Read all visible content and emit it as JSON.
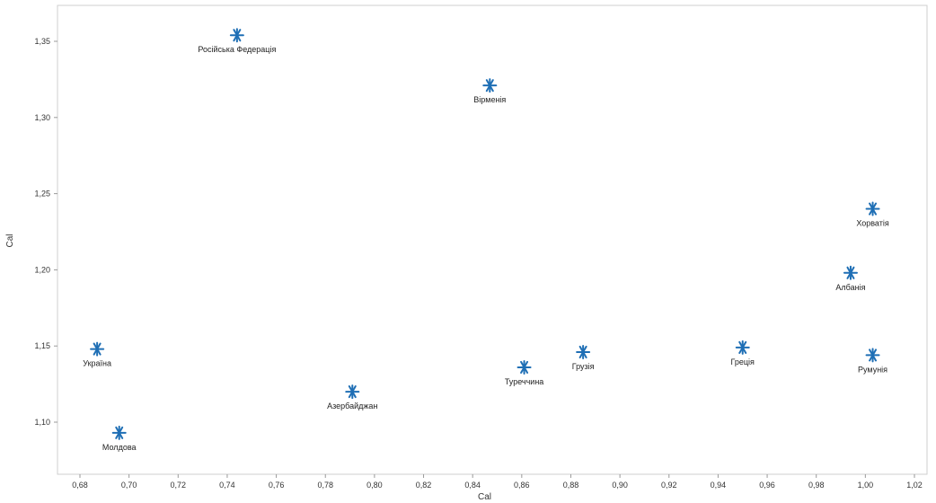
{
  "chart_data": {
    "type": "scatter",
    "title": "",
    "xlabel": "Cal",
    "ylabel": "Cal",
    "xlim": [
      0.67,
      1.02
    ],
    "ylim": [
      1.07,
      1.375
    ],
    "xticks": [
      "0,68",
      "0,70",
      "0,72",
      "0,74",
      "0,76",
      "0,78",
      "0,80",
      "0,82",
      "0,84",
      "0,86",
      "0,88",
      "0,90",
      "0,92",
      "0,94",
      "0,96",
      "0,98",
      "1,00",
      "1,02"
    ],
    "yticks": [
      "1,10",
      "1,15",
      "1,20",
      "1,25",
      "1,30",
      "1,35"
    ],
    "grid": false,
    "marker_color": "#1f6fb5",
    "points": [
      {
        "label": "Російська Федерація",
        "x": 0.744,
        "y": 1.354
      },
      {
        "label": "Вірменія",
        "x": 0.847,
        "y": 1.321
      },
      {
        "label": "Хорватія",
        "x": 1.003,
        "y": 1.24
      },
      {
        "label": "Албанія",
        "x": 0.994,
        "y": 1.198
      },
      {
        "label": "Україна",
        "x": 0.687,
        "y": 1.148
      },
      {
        "label": "Молдова",
        "x": 0.696,
        "y": 1.093
      },
      {
        "label": "Азербайджан",
        "x": 0.791,
        "y": 1.12
      },
      {
        "label": "Туреччина",
        "x": 0.861,
        "y": 1.136
      },
      {
        "label": "Грузія",
        "x": 0.885,
        "y": 1.146
      },
      {
        "label": "Греція",
        "x": 0.95,
        "y": 1.149
      },
      {
        "label": "Румунія",
        "x": 1.003,
        "y": 1.144
      }
    ]
  }
}
